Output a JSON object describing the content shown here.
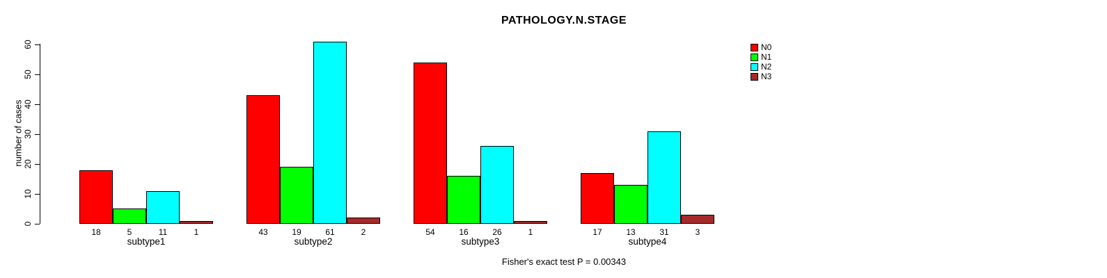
{
  "title": "PATHOLOGY.N.STAGE",
  "caption": "Fisher's exact test P = 0.00343",
  "chart_data": {
    "type": "bar",
    "title": "PATHOLOGY.N.STAGE",
    "categories": [
      "subtype1",
      "subtype2",
      "subtype3",
      "subtype4"
    ],
    "series": [
      {
        "name": "N0",
        "color": "#ff0000",
        "values": [
          18,
          43,
          54,
          17
        ]
      },
      {
        "name": "N1",
        "color": "#00ff00",
        "values": [
          5,
          19,
          16,
          13
        ]
      },
      {
        "name": "N2",
        "color": "#00ffff",
        "values": [
          11,
          61,
          26,
          31
        ]
      },
      {
        "name": "N3",
        "color": "#a52a2a",
        "values": [
          1,
          2,
          1,
          3
        ]
      }
    ],
    "bar_value_labels": [
      [
        "18",
        "5",
        "11",
        "1"
      ],
      [
        "43",
        "19",
        "61",
        "2"
      ],
      [
        "54",
        "16",
        "26",
        "1"
      ],
      [
        "17",
        "13",
        "31",
        "3"
      ]
    ],
    "xlabel": "",
    "ylabel": "number of cases",
    "ylim": [
      0,
      60
    ],
    "yticks": [
      "0",
      "10",
      "20",
      "30",
      "40",
      "50",
      "60"
    ],
    "grid": false,
    "legend_position": "top-right",
    "annotation": "Fisher's exact test P = 0.00343"
  }
}
